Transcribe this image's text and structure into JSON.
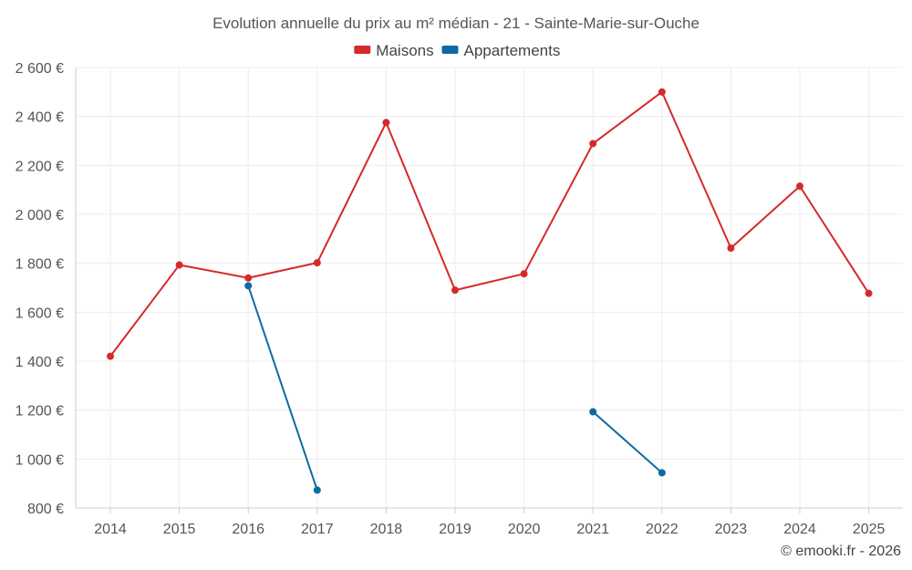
{
  "chart_data": {
    "type": "line",
    "title": "Evolution annuelle du prix au m² médian - 21 - Sainte-Marie-sur-Ouche",
    "categories": [
      "2014",
      "2015",
      "2016",
      "2017",
      "2018",
      "2019",
      "2020",
      "2021",
      "2022",
      "2023",
      "2024",
      "2025"
    ],
    "y_ticks": [
      "800 €",
      "1 000 €",
      "1 200 €",
      "1 400 €",
      "1 600 €",
      "1 800 €",
      "2 000 €",
      "2 200 €",
      "2 400 €",
      "2 600 €"
    ],
    "ylim": [
      800,
      2600
    ],
    "grid": true,
    "legend_position": "top-center",
    "series": [
      {
        "name": "Maisons",
        "color": "#d42a2a",
        "values": [
          1420,
          1793,
          1740,
          1802,
          2375,
          1690,
          1757,
          2289,
          2500,
          1862,
          2115,
          1677
        ]
      },
      {
        "name": "Appartements",
        "color": "#0e6aa3",
        "values": [
          null,
          null,
          1708,
          873,
          null,
          null,
          null,
          1193,
          944,
          null,
          null,
          null
        ]
      }
    ]
  },
  "footer": {
    "credit": "© emooki.fr - 2026"
  }
}
